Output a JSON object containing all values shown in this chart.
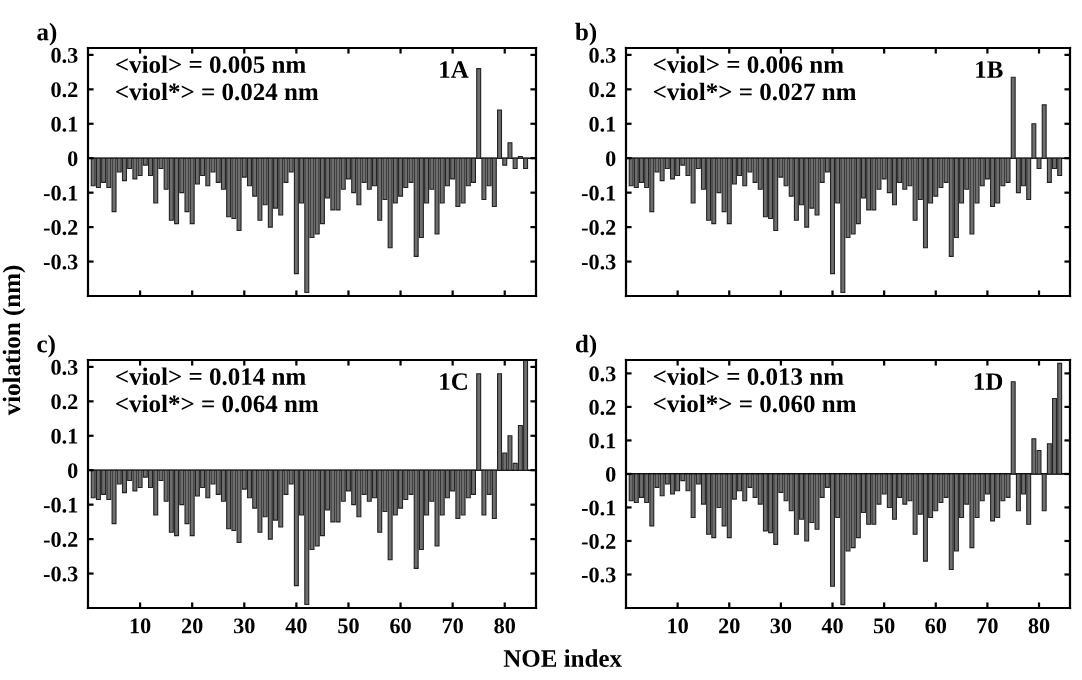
{
  "chart_data": [
    {
      "type": "bar",
      "x": [
        1,
        2,
        3,
        4,
        5,
        6,
        7,
        8,
        9,
        10,
        11,
        12,
        13,
        14,
        15,
        16,
        17,
        18,
        19,
        20,
        21,
        22,
        23,
        24,
        25,
        26,
        27,
        28,
        29,
        30,
        31,
        32,
        33,
        34,
        35,
        36,
        37,
        38,
        39,
        40,
        41,
        42,
        43,
        44,
        45,
        46,
        47,
        48,
        49,
        50,
        51,
        52,
        53,
        54,
        55,
        56,
        57,
        58,
        59,
        60,
        61,
        62,
        63,
        64,
        65,
        66,
        67,
        68,
        69,
        70,
        71,
        72,
        73,
        74,
        75,
        76,
        77,
        78,
        79,
        80,
        81,
        82,
        83,
        84
      ],
      "values": [
        -0.08,
        -0.085,
        -0.07,
        -0.085,
        -0.155,
        -0.04,
        -0.065,
        -0.03,
        -0.06,
        -0.05,
        -0.02,
        -0.05,
        -0.13,
        -0.03,
        -0.09,
        -0.18,
        -0.19,
        -0.1,
        -0.155,
        -0.19,
        -0.075,
        -0.05,
        -0.08,
        -0.04,
        -0.07,
        -0.09,
        -0.17,
        -0.175,
        -0.21,
        -0.055,
        -0.08,
        -0.11,
        -0.18,
        -0.135,
        -0.2,
        -0.145,
        -0.165,
        -0.07,
        -0.04,
        -0.335,
        -0.13,
        -0.39,
        -0.23,
        -0.22,
        -0.19,
        -0.115,
        -0.15,
        -0.15,
        -0.09,
        -0.06,
        -0.1,
        -0.135,
        -0.07,
        -0.09,
        -0.08,
        -0.18,
        -0.12,
        -0.26,
        -0.13,
        -0.11,
        -0.085,
        -0.07,
        -0.285,
        -0.23,
        -0.13,
        -0.09,
        -0.22,
        -0.13,
        -0.08,
        -0.06,
        -0.14,
        -0.13,
        -0.08,
        -0.07,
        0.26,
        -0.12,
        -0.08,
        -0.14,
        0.14,
        -0.02,
        0.045,
        -0.03,
        0.005,
        -0.03
      ],
      "color": "#6e6e6e",
      "xlim": [
        0,
        86
      ],
      "ylim": [
        -0.4,
        0.32
      ],
      "xticks": [
        10,
        20,
        30,
        40,
        50,
        60,
        70,
        80
      ],
      "yticks": [
        -0.3,
        -0.2,
        -0.1,
        0,
        0.1,
        0.2,
        0.3
      ],
      "tick_labels": "y",
      "annotations": [
        "a)",
        "<viol> = 0.005 nm",
        "<viol*> = 0.024 nm",
        "1A"
      ]
    },
    {
      "type": "bar",
      "x": [
        1,
        2,
        3,
        4,
        5,
        6,
        7,
        8,
        9,
        10,
        11,
        12,
        13,
        14,
        15,
        16,
        17,
        18,
        19,
        20,
        21,
        22,
        23,
        24,
        25,
        26,
        27,
        28,
        29,
        30,
        31,
        32,
        33,
        34,
        35,
        36,
        37,
        38,
        39,
        40,
        41,
        42,
        43,
        44,
        45,
        46,
        47,
        48,
        49,
        50,
        51,
        52,
        53,
        54,
        55,
        56,
        57,
        58,
        59,
        60,
        61,
        62,
        63,
        64,
        65,
        66,
        67,
        68,
        69,
        70,
        71,
        72,
        73,
        74,
        75,
        76,
        77,
        78,
        79,
        80,
        81,
        82,
        83,
        84
      ],
      "values": [
        -0.08,
        -0.085,
        -0.07,
        -0.085,
        -0.155,
        -0.04,
        -0.065,
        -0.03,
        -0.06,
        -0.05,
        -0.02,
        -0.05,
        -0.13,
        -0.03,
        -0.09,
        -0.18,
        -0.19,
        -0.1,
        -0.155,
        -0.19,
        -0.075,
        -0.05,
        -0.08,
        -0.04,
        -0.07,
        -0.09,
        -0.17,
        -0.175,
        -0.21,
        -0.055,
        -0.08,
        -0.11,
        -0.18,
        -0.135,
        -0.2,
        -0.145,
        -0.165,
        -0.07,
        -0.04,
        -0.335,
        -0.13,
        -0.39,
        -0.23,
        -0.22,
        -0.19,
        -0.115,
        -0.15,
        -0.15,
        -0.09,
        -0.06,
        -0.1,
        -0.135,
        -0.07,
        -0.09,
        -0.08,
        -0.18,
        -0.12,
        -0.26,
        -0.13,
        -0.11,
        -0.085,
        -0.07,
        -0.285,
        -0.23,
        -0.13,
        -0.09,
        -0.22,
        -0.13,
        -0.08,
        -0.06,
        -0.14,
        -0.13,
        -0.08,
        -0.07,
        0.235,
        -0.1,
        -0.08,
        -0.12,
        0.1,
        -0.03,
        0.155,
        -0.07,
        -0.03,
        -0.05
      ],
      "color": "#6e6e6e",
      "xlim": [
        0,
        86
      ],
      "ylim": [
        -0.4,
        0.32
      ],
      "xticks": [
        10,
        20,
        30,
        40,
        50,
        60,
        70,
        80
      ],
      "yticks": [
        -0.3,
        -0.2,
        -0.1,
        0,
        0.1,
        0.2,
        0.3
      ],
      "tick_labels": "y",
      "annotations": [
        "b)",
        "<viol> = 0.006 nm",
        "<viol*> = 0.027 nm",
        "1B"
      ]
    },
    {
      "type": "bar",
      "x": [
        1,
        2,
        3,
        4,
        5,
        6,
        7,
        8,
        9,
        10,
        11,
        12,
        13,
        14,
        15,
        16,
        17,
        18,
        19,
        20,
        21,
        22,
        23,
        24,
        25,
        26,
        27,
        28,
        29,
        30,
        31,
        32,
        33,
        34,
        35,
        36,
        37,
        38,
        39,
        40,
        41,
        42,
        43,
        44,
        45,
        46,
        47,
        48,
        49,
        50,
        51,
        52,
        53,
        54,
        55,
        56,
        57,
        58,
        59,
        60,
        61,
        62,
        63,
        64,
        65,
        66,
        67,
        68,
        69,
        70,
        71,
        72,
        73,
        74,
        75,
        76,
        77,
        78,
        79,
        80,
        81,
        82,
        83,
        84
      ],
      "values": [
        -0.08,
        -0.085,
        -0.07,
        -0.085,
        -0.155,
        -0.04,
        -0.065,
        -0.03,
        -0.06,
        -0.05,
        -0.02,
        -0.05,
        -0.13,
        -0.03,
        -0.09,
        -0.18,
        -0.19,
        -0.1,
        -0.155,
        -0.19,
        -0.075,
        -0.05,
        -0.08,
        -0.04,
        -0.07,
        -0.09,
        -0.17,
        -0.175,
        -0.21,
        -0.055,
        -0.08,
        -0.11,
        -0.18,
        -0.135,
        -0.2,
        -0.145,
        -0.165,
        -0.07,
        -0.04,
        -0.335,
        -0.13,
        -0.39,
        -0.23,
        -0.22,
        -0.19,
        -0.115,
        -0.15,
        -0.15,
        -0.09,
        -0.06,
        -0.1,
        -0.135,
        -0.07,
        -0.09,
        -0.08,
        -0.18,
        -0.12,
        -0.26,
        -0.13,
        -0.11,
        -0.085,
        -0.07,
        -0.285,
        -0.23,
        -0.13,
        -0.09,
        -0.22,
        -0.13,
        -0.08,
        -0.06,
        -0.14,
        -0.13,
        -0.08,
        -0.07,
        0.28,
        -0.13,
        -0.07,
        -0.14,
        0.28,
        0.05,
        0.1,
        0.02,
        0.13,
        0.32
      ],
      "color": "#6e6e6e",
      "xlim": [
        0,
        86
      ],
      "ylim": [
        -0.4,
        0.32
      ],
      "xticks": [
        10,
        20,
        30,
        40,
        50,
        60,
        70,
        80
      ],
      "yticks": [
        -0.3,
        -0.2,
        -0.1,
        0,
        0.1,
        0.2,
        0.3
      ],
      "ylabel": "violation (nm)",
      "xlabel": "NOE index",
      "annotations": [
        "c)",
        "<viol> = 0.014 nm",
        "<viol*> = 0.064 nm",
        "1C"
      ]
    },
    {
      "type": "bar",
      "x": [
        1,
        2,
        3,
        4,
        5,
        6,
        7,
        8,
        9,
        10,
        11,
        12,
        13,
        14,
        15,
        16,
        17,
        18,
        19,
        20,
        21,
        22,
        23,
        24,
        25,
        26,
        27,
        28,
        29,
        30,
        31,
        32,
        33,
        34,
        35,
        36,
        37,
        38,
        39,
        40,
        41,
        42,
        43,
        44,
        45,
        46,
        47,
        48,
        49,
        50,
        51,
        52,
        53,
        54,
        55,
        56,
        57,
        58,
        59,
        60,
        61,
        62,
        63,
        64,
        65,
        66,
        67,
        68,
        69,
        70,
        71,
        72,
        73,
        74,
        75,
        76,
        77,
        78,
        79,
        80,
        81,
        82,
        83,
        84
      ],
      "values": [
        -0.08,
        -0.085,
        -0.07,
        -0.085,
        -0.155,
        -0.04,
        -0.065,
        -0.03,
        -0.06,
        -0.05,
        -0.02,
        -0.05,
        -0.13,
        -0.03,
        -0.09,
        -0.18,
        -0.19,
        -0.1,
        -0.155,
        -0.19,
        -0.075,
        -0.05,
        -0.08,
        -0.04,
        -0.07,
        -0.09,
        -0.17,
        -0.175,
        -0.21,
        -0.055,
        -0.08,
        -0.11,
        -0.18,
        -0.135,
        -0.2,
        -0.145,
        -0.165,
        -0.07,
        -0.04,
        -0.335,
        -0.13,
        -0.39,
        -0.23,
        -0.22,
        -0.19,
        -0.115,
        -0.15,
        -0.15,
        -0.09,
        -0.06,
        -0.1,
        -0.135,
        -0.07,
        -0.09,
        -0.08,
        -0.18,
        -0.12,
        -0.26,
        -0.13,
        -0.11,
        -0.085,
        -0.07,
        -0.285,
        -0.23,
        -0.13,
        -0.09,
        -0.22,
        -0.13,
        -0.08,
        -0.06,
        -0.14,
        -0.13,
        -0.08,
        -0.07,
        0.275,
        -0.11,
        -0.06,
        -0.15,
        0.105,
        0.07,
        -0.11,
        0.09,
        0.225,
        0.33
      ],
      "color": "#6e6e6e",
      "xlim": [
        0,
        86
      ],
      "ylim": [
        -0.4,
        0.34
      ],
      "xticks": [
        10,
        20,
        30,
        40,
        50,
        60,
        70,
        80
      ],
      "yticks": [
        -0.3,
        -0.2,
        -0.1,
        0,
        0.1,
        0.2,
        0.3
      ],
      "annotations": [
        "d)",
        "<viol> = 0.013 nm",
        "<viol*> = 0.060 nm",
        "1D"
      ]
    }
  ]
}
